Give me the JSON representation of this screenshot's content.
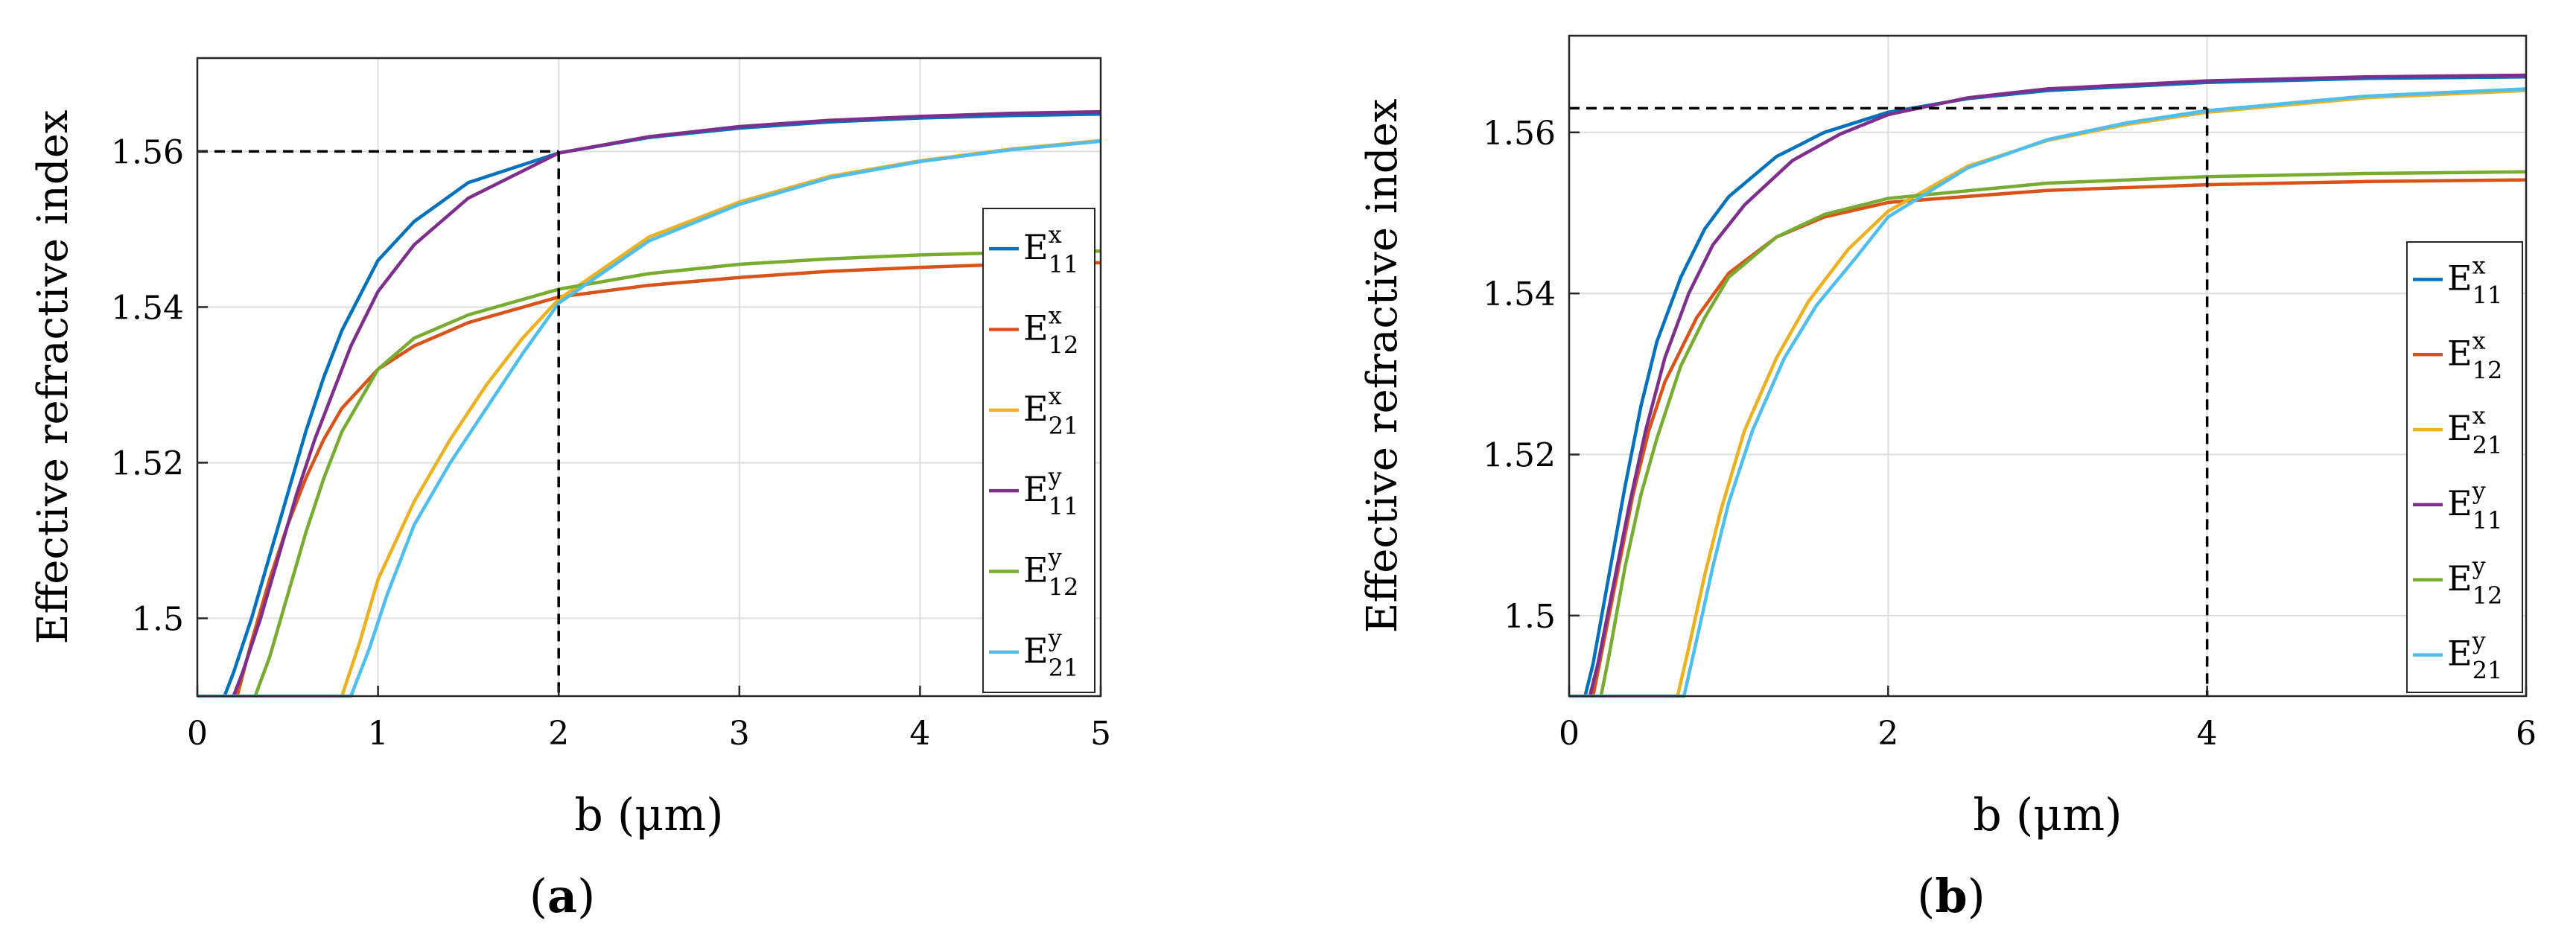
{
  "colors": {
    "E11x": "#0072bd",
    "E12x": "#d95319",
    "E21x": "#edb120",
    "E11y": "#7e2f8e",
    "E12y": "#77ac30",
    "E21y": "#4dbeee",
    "grid": "#dedede",
    "guide": "#000000"
  },
  "chart_data": [
    {
      "type": "line",
      "panel": "a",
      "caption": "(a)",
      "caption_open": "(",
      "caption_letter": "a",
      "caption_close": ")",
      "xlabel": "b (μm)",
      "ylabel": "Effective refractive index",
      "xlim": [
        0,
        5
      ],
      "ylim": [
        1.49,
        1.572
      ],
      "xticks": [
        0,
        1,
        2,
        3,
        4,
        5
      ],
      "xtick_labels": [
        "0",
        "1",
        "2",
        "3",
        "4",
        "5"
      ],
      "yticks": [
        1.5,
        1.52,
        1.54,
        1.56
      ],
      "ytick_labels": [
        "1.5",
        "1.52",
        "1.54",
        "1.56"
      ],
      "grid": true,
      "legend_position": "right",
      "guide": {
        "x": 2,
        "y": 1.56
      },
      "series": [
        {
          "key": "E11x",
          "name": "E^x_11",
          "base": "E",
          "sup": "x",
          "sub": "11",
          "values": [
            [
              0.15,
              1.49
            ],
            [
              0.2,
              1.493
            ],
            [
              0.3,
              1.5
            ],
            [
              0.4,
              1.508
            ],
            [
              0.5,
              1.516
            ],
            [
              0.6,
              1.524
            ],
            [
              0.7,
              1.531
            ],
            [
              0.8,
              1.537
            ],
            [
              1.0,
              1.546
            ],
            [
              1.2,
              1.551
            ],
            [
              1.5,
              1.556
            ],
            [
              2.0,
              1.5598
            ],
            [
              2.5,
              1.5618
            ],
            [
              3.0,
              1.563
            ],
            [
              3.5,
              1.5638
            ],
            [
              4.0,
              1.5643
            ],
            [
              4.5,
              1.5646
            ],
            [
              5.0,
              1.5648
            ]
          ]
        },
        {
          "key": "E12x",
          "name": "E^x_12",
          "base": "E",
          "sup": "x",
          "sub": "12",
          "values": [
            [
              0.22,
              1.49
            ],
            [
              0.3,
              1.497
            ],
            [
              0.4,
              1.505
            ],
            [
              0.5,
              1.512
            ],
            [
              0.6,
              1.518
            ],
            [
              0.7,
              1.523
            ],
            [
              0.8,
              1.527
            ],
            [
              1.0,
              1.532
            ],
            [
              1.2,
              1.535
            ],
            [
              1.5,
              1.538
            ],
            [
              2.0,
              1.5413
            ],
            [
              2.5,
              1.5428
            ],
            [
              3.0,
              1.5438
            ],
            [
              3.5,
              1.5446
            ],
            [
              4.0,
              1.5451
            ],
            [
              4.5,
              1.5455
            ],
            [
              5.0,
              1.5457
            ]
          ]
        },
        {
          "key": "E21x",
          "name": "E^x_21",
          "base": "E",
          "sup": "x",
          "sub": "21",
          "values": [
            [
              0,
              1.49
            ],
            [
              0.8,
              1.49
            ],
            [
              0.9,
              1.497
            ],
            [
              1.0,
              1.505
            ],
            [
              1.2,
              1.515
            ],
            [
              1.4,
              1.523
            ],
            [
              1.6,
              1.53
            ],
            [
              1.8,
              1.536
            ],
            [
              2.0,
              1.541
            ],
            [
              2.5,
              1.549
            ],
            [
              3.0,
              1.5535
            ],
            [
              3.5,
              1.5568
            ],
            [
              4.0,
              1.5588
            ],
            [
              4.5,
              1.5603
            ],
            [
              5.0,
              1.5614
            ]
          ]
        },
        {
          "key": "E11y",
          "name": "E^y_11",
          "base": "E",
          "sup": "y",
          "sub": "11",
          "values": [
            [
              0.2,
              1.49
            ],
            [
              0.25,
              1.493
            ],
            [
              0.35,
              1.5
            ],
            [
              0.45,
              1.508
            ],
            [
              0.55,
              1.516
            ],
            [
              0.65,
              1.523
            ],
            [
              0.75,
              1.529
            ],
            [
              0.85,
              1.535
            ],
            [
              1.0,
              1.542
            ],
            [
              1.2,
              1.548
            ],
            [
              1.5,
              1.554
            ],
            [
              2.0,
              1.5598
            ],
            [
              2.5,
              1.5619
            ],
            [
              3.0,
              1.5632
            ],
            [
              3.5,
              1.564
            ],
            [
              4.0,
              1.5645
            ],
            [
              4.5,
              1.5649
            ],
            [
              5.0,
              1.5651
            ]
          ]
        },
        {
          "key": "E12y",
          "name": "E^y_12",
          "base": "E",
          "sup": "y",
          "sub": "12",
          "values": [
            [
              0.32,
              1.49
            ],
            [
              0.4,
              1.495
            ],
            [
              0.5,
              1.503
            ],
            [
              0.6,
              1.511
            ],
            [
              0.7,
              1.518
            ],
            [
              0.8,
              1.524
            ],
            [
              1.0,
              1.532
            ],
            [
              1.2,
              1.536
            ],
            [
              1.5,
              1.539
            ],
            [
              2.0,
              1.5423
            ],
            [
              2.5,
              1.5443
            ],
            [
              3.0,
              1.5455
            ],
            [
              3.5,
              1.5462
            ],
            [
              4.0,
              1.5467
            ],
            [
              4.5,
              1.547
            ],
            [
              5.0,
              1.5472
            ]
          ]
        },
        {
          "key": "E21y",
          "name": "E^y_21",
          "base": "E",
          "sup": "y",
          "sub": "21",
          "values": [
            [
              0,
              1.49
            ],
            [
              0.85,
              1.49
            ],
            [
              0.95,
              1.496
            ],
            [
              1.05,
              1.503
            ],
            [
              1.2,
              1.512
            ],
            [
              1.4,
              1.52
            ],
            [
              1.6,
              1.527
            ],
            [
              1.8,
              1.534
            ],
            [
              2.0,
              1.5405
            ],
            [
              2.5,
              1.5485
            ],
            [
              3.0,
              1.5532
            ],
            [
              3.5,
              1.5566
            ],
            [
              4.0,
              1.5587
            ],
            [
              4.5,
              1.5602
            ],
            [
              5.0,
              1.5613
            ]
          ]
        }
      ]
    },
    {
      "type": "line",
      "panel": "b",
      "caption": "(b)",
      "caption_open": "(",
      "caption_letter": "b",
      "caption_close": ")",
      "xlabel": "b (μm)",
      "ylabel": "Effective refractive index",
      "xlim": [
        0,
        6
      ],
      "ylim": [
        1.49,
        1.572
      ],
      "xticks": [
        0,
        2,
        4,
        6
      ],
      "xtick_labels": [
        "0",
        "2",
        "4",
        "6"
      ],
      "yticks": [
        1.5,
        1.52,
        1.54,
        1.56
      ],
      "ytick_labels": [
        "1.5",
        "1.52",
        "1.54",
        "1.56"
      ],
      "grid": true,
      "legend_position": "right",
      "guide": {
        "x": 4,
        "y": 1.563
      },
      "series": [
        {
          "key": "E11x",
          "name": "E^x_11",
          "base": "E",
          "sup": "x",
          "sub": "11",
          "values": [
            [
              0.1,
              1.49
            ],
            [
              0.15,
              1.494
            ],
            [
              0.25,
              1.505
            ],
            [
              0.35,
              1.516
            ],
            [
              0.45,
              1.526
            ],
            [
              0.55,
              1.534
            ],
            [
              0.7,
              1.542
            ],
            [
              0.85,
              1.548
            ],
            [
              1.0,
              1.552
            ],
            [
              1.3,
              1.557
            ],
            [
              1.6,
              1.56
            ],
            [
              2.0,
              1.5625
            ],
            [
              2.5,
              1.5642
            ],
            [
              3.0,
              1.5652
            ],
            [
              4.0,
              1.5662
            ],
            [
              5.0,
              1.5667
            ],
            [
              6.0,
              1.5669
            ]
          ]
        },
        {
          "key": "E12x",
          "name": "E^x_12",
          "base": "E",
          "sup": "x",
          "sub": "12",
          "values": [
            [
              0.15,
              1.49
            ],
            [
              0.2,
              1.495
            ],
            [
              0.3,
              1.505
            ],
            [
              0.4,
              1.515
            ],
            [
              0.5,
              1.523
            ],
            [
              0.6,
              1.529
            ],
            [
              0.8,
              1.537
            ],
            [
              1.0,
              1.5425
            ],
            [
              1.3,
              1.547
            ],
            [
              1.6,
              1.5495
            ],
            [
              2.0,
              1.5513
            ],
            [
              3.0,
              1.5528
            ],
            [
              4.0,
              1.5535
            ],
            [
              5.0,
              1.5539
            ],
            [
              6.0,
              1.5541
            ]
          ]
        },
        {
          "key": "E21x",
          "name": "E^x_21",
          "base": "E",
          "sup": "x",
          "sub": "21",
          "values": [
            [
              0,
              1.49
            ],
            [
              0.68,
              1.49
            ],
            [
              0.75,
              1.496
            ],
            [
              0.85,
              1.505
            ],
            [
              0.95,
              1.513
            ],
            [
              1.1,
              1.523
            ],
            [
              1.3,
              1.532
            ],
            [
              1.5,
              1.539
            ],
            [
              1.75,
              1.5455
            ],
            [
              2.0,
              1.5502
            ],
            [
              2.5,
              1.5558
            ],
            [
              3.0,
              1.559
            ],
            [
              3.5,
              1.561
            ],
            [
              4.0,
              1.5625
            ],
            [
              5.0,
              1.5643
            ],
            [
              6.0,
              1.5652
            ]
          ]
        },
        {
          "key": "E11y",
          "name": "E^y_11",
          "base": "E",
          "sup": "y",
          "sub": "11",
          "values": [
            [
              0.13,
              1.49
            ],
            [
              0.18,
              1.494
            ],
            [
              0.28,
              1.504
            ],
            [
              0.38,
              1.514
            ],
            [
              0.48,
              1.523
            ],
            [
              0.6,
              1.532
            ],
            [
              0.75,
              1.54
            ],
            [
              0.9,
              1.546
            ],
            [
              1.1,
              1.551
            ],
            [
              1.4,
              1.5565
            ],
            [
              1.7,
              1.5598
            ],
            [
              2.0,
              1.5622
            ],
            [
              2.5,
              1.5643
            ],
            [
              3.0,
              1.5654
            ],
            [
              4.0,
              1.5664
            ],
            [
              5.0,
              1.5669
            ],
            [
              6.0,
              1.5671
            ]
          ]
        },
        {
          "key": "E12y",
          "name": "E^y_12",
          "base": "E",
          "sup": "y",
          "sub": "12",
          "values": [
            [
              0.2,
              1.49
            ],
            [
              0.25,
              1.495
            ],
            [
              0.35,
              1.506
            ],
            [
              0.45,
              1.515
            ],
            [
              0.55,
              1.522
            ],
            [
              0.7,
              1.531
            ],
            [
              0.85,
              1.537
            ],
            [
              1.0,
              1.542
            ],
            [
              1.3,
              1.547
            ],
            [
              1.6,
              1.5498
            ],
            [
              2.0,
              1.5518
            ],
            [
              3.0,
              1.5537
            ],
            [
              4.0,
              1.5545
            ],
            [
              5.0,
              1.5549
            ],
            [
              6.0,
              1.5551
            ]
          ]
        },
        {
          "key": "E21y",
          "name": "E^y_21",
          "base": "E",
          "sup": "y",
          "sub": "21",
          "values": [
            [
              0,
              1.49
            ],
            [
              0.72,
              1.49
            ],
            [
              0.8,
              1.497
            ],
            [
              0.9,
              1.506
            ],
            [
              1.0,
              1.514
            ],
            [
              1.15,
              1.523
            ],
            [
              1.35,
              1.532
            ],
            [
              1.55,
              1.5385
            ],
            [
              1.8,
              1.5445
            ],
            [
              2.0,
              1.5495
            ],
            [
              2.5,
              1.5556
            ],
            [
              3.0,
              1.5591
            ],
            [
              3.5,
              1.5612
            ],
            [
              4.0,
              1.5627
            ],
            [
              5.0,
              1.5645
            ],
            [
              6.0,
              1.5654
            ]
          ]
        }
      ]
    }
  ]
}
